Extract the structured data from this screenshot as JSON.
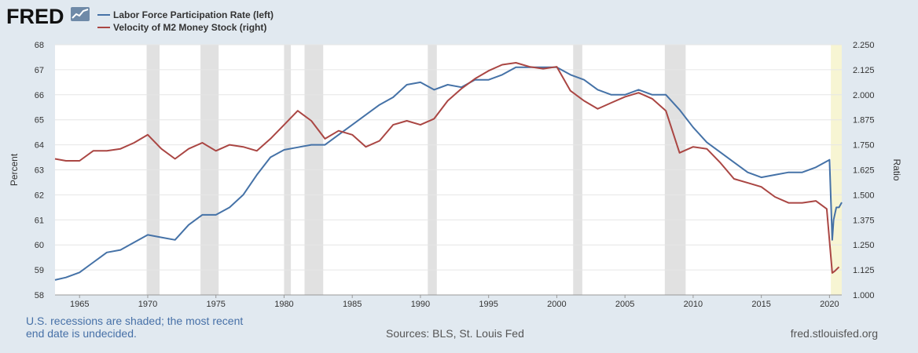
{
  "brand": {
    "logo_text": "FRED",
    "logo_icon": "line-chart-icon"
  },
  "legend": [
    {
      "label": "Labor Force Participation Rate (left)",
      "color": "#4572a7"
    },
    {
      "label": "Velocity of M2 Money Stock (right)",
      "color": "#aa4643"
    }
  ],
  "footer": {
    "note_line1": "U.S. recessions are shaded; the most recent",
    "note_line2": "end date is undecided.",
    "sources": "Sources: BLS, St. Louis Fed",
    "site": "fred.stlouisfed.org"
  },
  "colors": {
    "series_left": "#4572a7",
    "series_right": "#aa4643",
    "recession": "#e1e1e1",
    "recession_current": "#f7f5d3",
    "grid": "#e6e6e6",
    "plot_bg": "#ffffff"
  },
  "chart_data": {
    "type": "line",
    "title": "",
    "xlabel": "",
    "xlim": [
      1963.2,
      2020.9
    ],
    "x_ticks": [
      1965,
      1970,
      1975,
      1980,
      1985,
      1990,
      1995,
      2000,
      2005,
      2010,
      2015,
      2020
    ],
    "x_tick_labels": [
      "1965",
      "1970",
      "1975",
      "1980",
      "1985",
      "1990",
      "1995",
      "2000",
      "2005",
      "2010",
      "2015",
      "2020"
    ],
    "y_left": {
      "label": "Percent",
      "lim": [
        58,
        68
      ],
      "ticks": [
        58,
        59,
        60,
        61,
        62,
        63,
        64,
        65,
        66,
        67,
        68
      ]
    },
    "y_right": {
      "label": "Ratio",
      "lim": [
        1.0,
        2.25
      ],
      "ticks": [
        1.0,
        1.125,
        1.25,
        1.375,
        1.5,
        1.625,
        1.75,
        1.875,
        2.0,
        2.125,
        2.25
      ],
      "tick_labels": [
        "1.000",
        "1.125",
        "1.250",
        "1.375",
        "1.500",
        "1.625",
        "1.750",
        "1.875",
        "2.000",
        "2.125",
        "2.250"
      ]
    },
    "recessions": [
      [
        1969.92,
        1970.87
      ],
      [
        1973.87,
        1975.2
      ],
      [
        1980.0,
        1980.5
      ],
      [
        1981.5,
        1982.87
      ],
      [
        1990.54,
        1991.2
      ],
      [
        2001.2,
        2001.87
      ],
      [
        2007.92,
        2009.45
      ],
      [
        2020.1,
        2020.9
      ]
    ],
    "recession_current_index": 7,
    "series": [
      {
        "name": "Labor Force Participation Rate (left)",
        "axis": "left",
        "color": "#4572a7",
        "x": [
          1963.2,
          1964.0,
          1965.0,
          1966.0,
          1967.0,
          1968.0,
          1969.0,
          1970.0,
          1971.0,
          1972.0,
          1973.0,
          1974.0,
          1975.0,
          1976.0,
          1977.0,
          1978.0,
          1979.0,
          1980.0,
          1981.0,
          1982.0,
          1983.0,
          1984.0,
          1985.0,
          1986.0,
          1987.0,
          1988.0,
          1989.0,
          1990.0,
          1991.0,
          1992.0,
          1993.0,
          1994.0,
          1995.0,
          1996.0,
          1997.0,
          1998.0,
          1999.0,
          2000.0,
          2001.0,
          2002.0,
          2003.0,
          2004.0,
          2005.0,
          2006.0,
          2007.0,
          2008.0,
          2009.0,
          2010.0,
          2011.0,
          2012.0,
          2013.0,
          2014.0,
          2015.0,
          2016.0,
          2017.0,
          2018.0,
          2019.0,
          2020.0,
          2020.2,
          2020.3,
          2020.5,
          2020.7,
          2020.9
        ],
        "values": [
          58.6,
          58.7,
          58.9,
          59.3,
          59.7,
          59.8,
          60.1,
          60.4,
          60.3,
          60.2,
          60.8,
          61.2,
          61.2,
          61.5,
          62.0,
          62.8,
          63.5,
          63.8,
          63.9,
          64.0,
          64.0,
          64.4,
          64.8,
          65.2,
          65.6,
          65.9,
          66.4,
          66.5,
          66.2,
          66.4,
          66.3,
          66.6,
          66.6,
          66.8,
          67.1,
          67.1,
          67.1,
          67.1,
          66.8,
          66.6,
          66.2,
          66.0,
          66.0,
          66.2,
          66.0,
          66.0,
          65.4,
          64.7,
          64.1,
          63.7,
          63.3,
          62.9,
          62.7,
          62.8,
          62.9,
          62.9,
          63.1,
          63.4,
          60.2,
          61.0,
          61.5,
          61.5,
          61.7
        ]
      },
      {
        "name": "Velocity of M2 Money Stock (right)",
        "axis": "right",
        "color": "#aa4643",
        "x": [
          1963.2,
          1964.0,
          1965.0,
          1966.0,
          1967.0,
          1968.0,
          1969.0,
          1970.0,
          1971.0,
          1972.0,
          1973.0,
          1974.0,
          1975.0,
          1976.0,
          1977.0,
          1978.0,
          1979.0,
          1980.0,
          1981.0,
          1982.0,
          1983.0,
          1984.0,
          1985.0,
          1986.0,
          1987.0,
          1988.0,
          1989.0,
          1990.0,
          1991.0,
          1992.0,
          1993.0,
          1994.0,
          1995.0,
          1996.0,
          1997.0,
          1998.0,
          1999.0,
          2000.0,
          2001.0,
          2002.0,
          2003.0,
          2004.0,
          2005.0,
          2006.0,
          2007.0,
          2008.0,
          2009.0,
          2010.0,
          2011.0,
          2012.0,
          2013.0,
          2014.0,
          2015.0,
          2016.0,
          2017.0,
          2018.0,
          2019.0,
          2019.8,
          2020.2,
          2020.4,
          2020.7
        ],
        "values": [
          1.68,
          1.67,
          1.67,
          1.72,
          1.72,
          1.73,
          1.76,
          1.8,
          1.73,
          1.68,
          1.73,
          1.76,
          1.72,
          1.75,
          1.74,
          1.72,
          1.78,
          1.85,
          1.92,
          1.87,
          1.78,
          1.82,
          1.8,
          1.74,
          1.77,
          1.85,
          1.87,
          1.85,
          1.88,
          1.97,
          2.03,
          2.08,
          2.12,
          2.15,
          2.16,
          2.14,
          2.13,
          2.14,
          2.02,
          1.97,
          1.93,
          1.96,
          1.99,
          2.01,
          1.98,
          1.92,
          1.71,
          1.74,
          1.73,
          1.66,
          1.58,
          1.56,
          1.54,
          1.49,
          1.46,
          1.46,
          1.47,
          1.43,
          1.11,
          1.12,
          1.14
        ]
      }
    ]
  }
}
